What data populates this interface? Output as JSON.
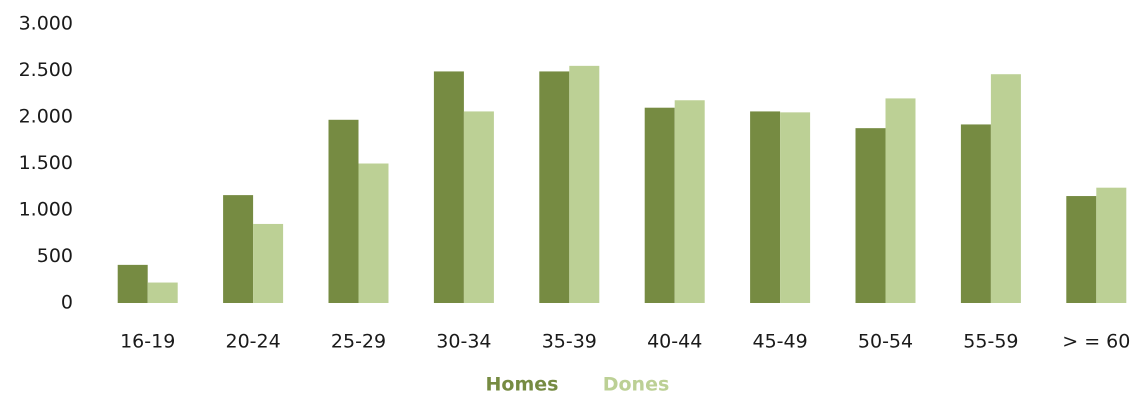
{
  "chart_data": {
    "type": "bar",
    "categories": [
      "16-19",
      "20-24",
      "25-29",
      "30-34",
      "35-39",
      "40-44",
      "45-49",
      "50-54",
      "55-59",
      "> = 60"
    ],
    "series": [
      {
        "name": "Homes",
        "color": "#768b42",
        "values": [
          410,
          1160,
          1970,
          2490,
          2490,
          2100,
          2060,
          1880,
          1920,
          1150
        ]
      },
      {
        "name": "Dones",
        "color": "#bcd095",
        "values": [
          220,
          850,
          1500,
          2060,
          2550,
          2180,
          2050,
          2200,
          2460,
          1240
        ]
      }
    ],
    "ylim": [
      0,
      3000
    ],
    "yticks": [
      0,
      500,
      {
        "value": 1000,
        "label": "1.000"
      },
      {
        "value": 1500,
        "label": "1.500"
      },
      {
        "value": 2000,
        "label": "2.000"
      },
      {
        "value": 2500,
        "label": "2.500"
      },
      {
        "value": 3000,
        "label": "3.000"
      }
    ],
    "grid": false,
    "legend": "bottom"
  }
}
